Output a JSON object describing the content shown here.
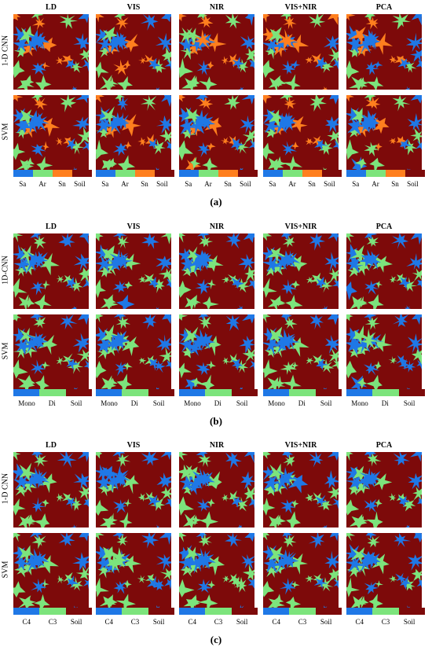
{
  "colors": {
    "blue": "#1f78e6",
    "green": "#7ce47c",
    "orange": "#ff7f1e",
    "soil": "#7d0a0a"
  },
  "panels": [
    {
      "label": "(a)",
      "columns": [
        "LD",
        "VIS",
        "NIR",
        "VIS+NIR",
        "PCA"
      ],
      "rows": [
        "1-D CNN",
        "SVM"
      ],
      "legend": {
        "classes": [
          "Sa",
          "Ar",
          "Sn",
          "Soil"
        ],
        "colors": [
          "#1f78e6",
          "#7ce47c",
          "#ff7f1e",
          "#7d0a0a"
        ]
      }
    },
    {
      "label": "(b)",
      "columns": [
        "LD",
        "VIS",
        "NIR",
        "VIS+NIR",
        "PCA"
      ],
      "rows": [
        "1D-CNN",
        "SVM"
      ],
      "legend": {
        "classes": [
          "Mono",
          "Di",
          "Soil"
        ],
        "colors": [
          "#1f78e6",
          "#7ce47c",
          "#7d0a0a"
        ]
      }
    },
    {
      "label": "(c)",
      "columns": [
        "LD",
        "VIS",
        "NIR",
        "VIS+NIR",
        "PCA"
      ],
      "rows": [
        "1-D CNN",
        "SVM"
      ],
      "legend": {
        "classes": [
          "C4",
          "C3",
          "Soil"
        ],
        "colors": [
          "#1f78e6",
          "#7ce47c",
          "#7d0a0a"
        ]
      }
    }
  ]
}
